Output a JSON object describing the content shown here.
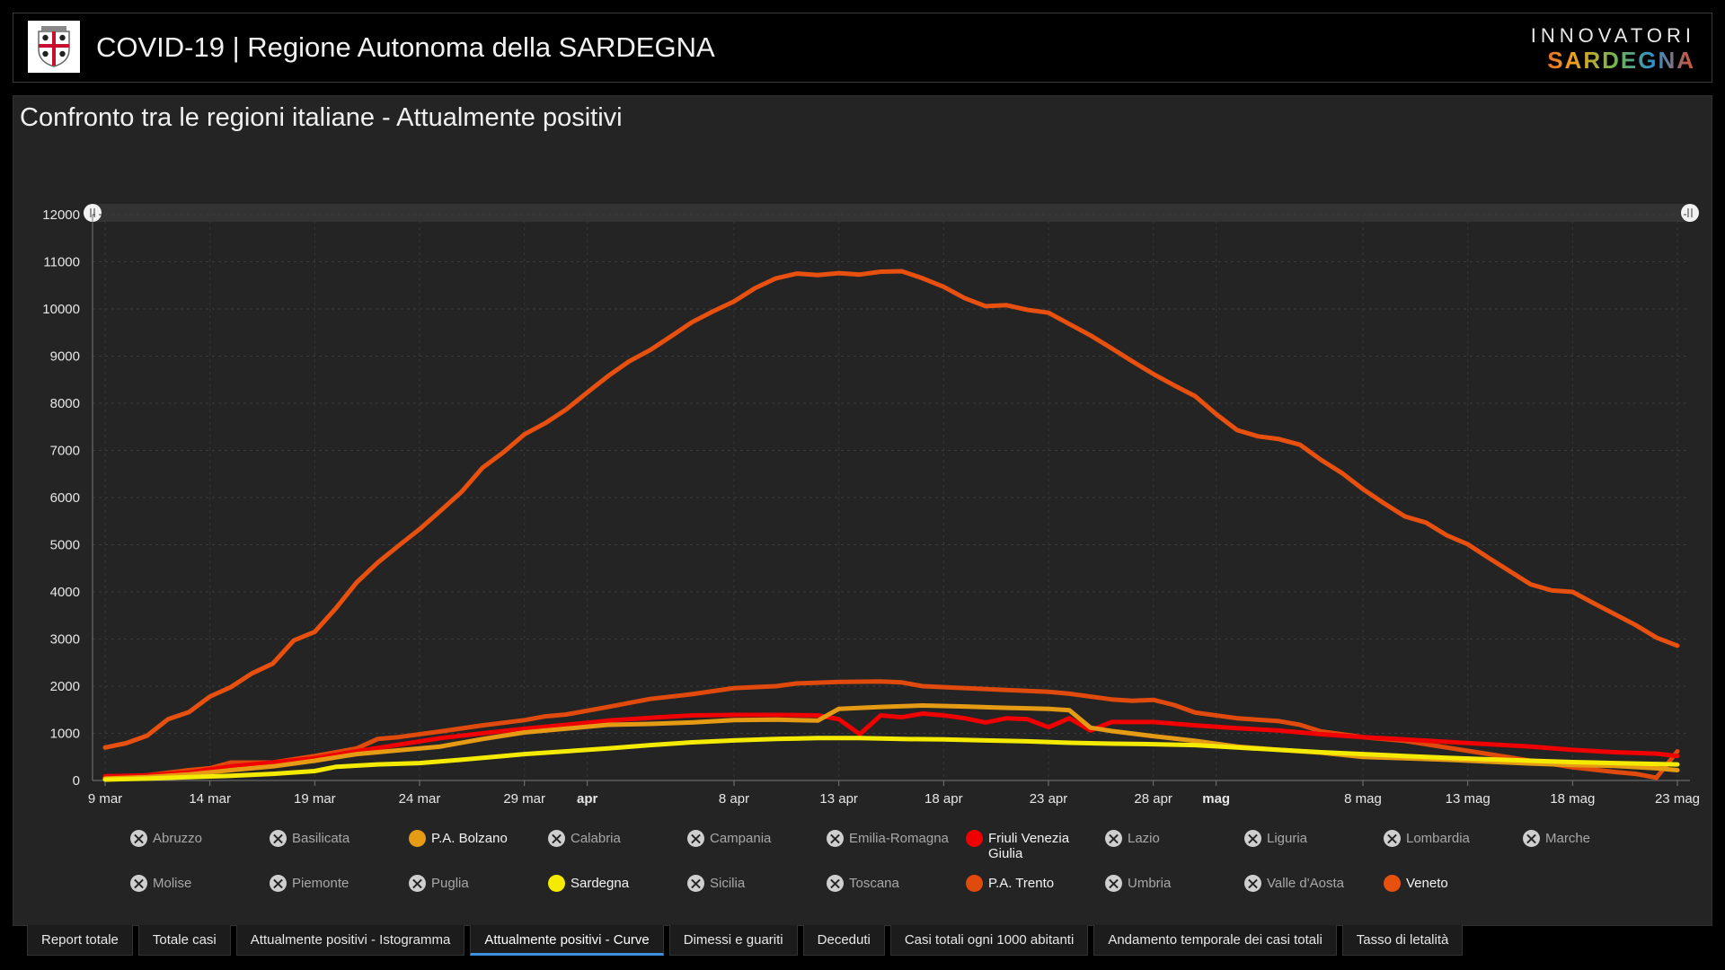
{
  "header": {
    "title": "COVID-19 | Regione Autonoma della SARDEGNA",
    "brand_top": "INNOVATORI",
    "brand_bottom": "SARDEGNA"
  },
  "panel": {
    "title": "Confronto tra le regioni italiane - Attualmente positivi"
  },
  "legend": {
    "items": [
      {
        "label": "Abruzzo",
        "active": false,
        "color": "#cfcfcf"
      },
      {
        "label": "Basilicata",
        "active": false,
        "color": "#cfcfcf"
      },
      {
        "label": "P.A. Bolzano",
        "active": true,
        "color": "#e59b14"
      },
      {
        "label": "Calabria",
        "active": false,
        "color": "#cfcfcf"
      },
      {
        "label": "Campania",
        "active": false,
        "color": "#cfcfcf"
      },
      {
        "label": "Emilia-Romagna",
        "active": false,
        "color": "#cfcfcf"
      },
      {
        "label": "Friuli Venezia Giulia",
        "active": true,
        "color": "#f00000"
      },
      {
        "label": "Lazio",
        "active": false,
        "color": "#cfcfcf"
      },
      {
        "label": "Liguria",
        "active": false,
        "color": "#cfcfcf"
      },
      {
        "label": "Lombardia",
        "active": false,
        "color": "#cfcfcf"
      },
      {
        "label": "Marche",
        "active": false,
        "color": "#cfcfcf"
      },
      {
        "label": "Molise",
        "active": false,
        "color": "#cfcfcf"
      },
      {
        "label": "Piemonte",
        "active": false,
        "color": "#cfcfcf"
      },
      {
        "label": "Puglia",
        "active": false,
        "color": "#cfcfcf"
      },
      {
        "label": "Sardegna",
        "active": true,
        "color": "#f5eb00"
      },
      {
        "label": "Sicilia",
        "active": false,
        "color": "#cfcfcf"
      },
      {
        "label": "Toscana",
        "active": false,
        "color": "#cfcfcf"
      },
      {
        "label": "P.A. Trento",
        "active": true,
        "color": "#e04a0c"
      },
      {
        "label": "Umbria",
        "active": false,
        "color": "#cfcfcf"
      },
      {
        "label": "Valle d'Aosta",
        "active": false,
        "color": "#cfcfcf"
      },
      {
        "label": "Veneto",
        "active": true,
        "color": "#e8500f"
      }
    ]
  },
  "tabs": [
    {
      "label": "Report totale",
      "active": false
    },
    {
      "label": "Totale casi",
      "active": false
    },
    {
      "label": "Attualmente positivi - Istogramma",
      "active": false
    },
    {
      "label": "Attualmente positivi - Curve",
      "active": true
    },
    {
      "label": "Dimessi e guariti",
      "active": false
    },
    {
      "label": "Deceduti",
      "active": false
    },
    {
      "label": "Casi totali ogni 1000 abitanti",
      "active": false
    },
    {
      "label": "Andamento temporale dei casi totali",
      "active": false
    },
    {
      "label": "Tasso di letalità",
      "active": false
    }
  ],
  "chart_data": {
    "type": "line",
    "title": "Confronto tra le regioni italiane - Attualmente positivi",
    "xlabel": "",
    "ylabel": "",
    "ylim": [
      0,
      12000
    ],
    "yticks": [
      0,
      1000,
      2000,
      3000,
      4000,
      5000,
      6000,
      7000,
      8000,
      9000,
      10000,
      11000,
      12000
    ],
    "xlim": [
      "9 mar",
      "23 mag"
    ],
    "xticks": [
      {
        "label": "9 mar",
        "day": 0,
        "bold": false
      },
      {
        "label": "14 mar",
        "day": 5,
        "bold": false
      },
      {
        "label": "19 mar",
        "day": 10,
        "bold": false
      },
      {
        "label": "24 mar",
        "day": 15,
        "bold": false
      },
      {
        "label": "29 mar",
        "day": 20,
        "bold": false
      },
      {
        "label": "apr",
        "day": 23,
        "bold": true
      },
      {
        "label": "8 apr",
        "day": 30,
        "bold": false
      },
      {
        "label": "13 apr",
        "day": 35,
        "bold": false
      },
      {
        "label": "18 apr",
        "day": 40,
        "bold": false
      },
      {
        "label": "23 apr",
        "day": 45,
        "bold": false
      },
      {
        "label": "28 apr",
        "day": 50,
        "bold": false
      },
      {
        "label": "mag",
        "day": 53,
        "bold": true
      },
      {
        "label": "8 mag",
        "day": 60,
        "bold": false
      },
      {
        "label": "13 mag",
        "day": 65,
        "bold": false
      },
      {
        "label": "18 mag",
        "day": 70,
        "bold": false
      },
      {
        "label": "23 mag",
        "day": 75,
        "bold": false
      }
    ],
    "grid": true,
    "legend_position": "bottom",
    "series": [
      {
        "name": "Veneto",
        "color": "#e8500f",
        "points": [
          [
            0,
            700
          ],
          [
            1,
            790
          ],
          [
            2,
            950
          ],
          [
            3,
            1300
          ],
          [
            4,
            1450
          ],
          [
            5,
            1780
          ],
          [
            6,
            1980
          ],
          [
            7,
            2270
          ],
          [
            8,
            2480
          ],
          [
            9,
            2970
          ],
          [
            10,
            3150
          ],
          [
            11,
            3650
          ],
          [
            12,
            4200
          ],
          [
            13,
            4620
          ],
          [
            14,
            4980
          ],
          [
            15,
            5330
          ],
          [
            16,
            5720
          ],
          [
            17,
            6120
          ],
          [
            18,
            6630
          ],
          [
            19,
            6960
          ],
          [
            20,
            7340
          ],
          [
            21,
            7580
          ],
          [
            22,
            7870
          ],
          [
            23,
            8230
          ],
          [
            24,
            8580
          ],
          [
            25,
            8890
          ],
          [
            26,
            9130
          ],
          [
            27,
            9420
          ],
          [
            28,
            9720
          ],
          [
            29,
            9950
          ],
          [
            30,
            10160
          ],
          [
            31,
            10440
          ],
          [
            32,
            10650
          ],
          [
            33,
            10750
          ],
          [
            34,
            10720
          ],
          [
            35,
            10760
          ],
          [
            36,
            10730
          ],
          [
            37,
            10790
          ],
          [
            38,
            10800
          ],
          [
            39,
            10650
          ],
          [
            40,
            10470
          ],
          [
            41,
            10230
          ],
          [
            42,
            10060
          ],
          [
            43,
            10080
          ],
          [
            44,
            9980
          ],
          [
            45,
            9920
          ],
          [
            46,
            9680
          ],
          [
            47,
            9440
          ],
          [
            48,
            9170
          ],
          [
            49,
            8890
          ],
          [
            50,
            8620
          ],
          [
            51,
            8380
          ],
          [
            52,
            8150
          ],
          [
            53,
            7770
          ],
          [
            54,
            7430
          ],
          [
            55,
            7300
          ],
          [
            56,
            7240
          ],
          [
            57,
            7120
          ],
          [
            58,
            6800
          ],
          [
            59,
            6520
          ],
          [
            60,
            6180
          ],
          [
            61,
            5880
          ],
          [
            62,
            5600
          ],
          [
            63,
            5470
          ],
          [
            64,
            5200
          ],
          [
            65,
            5010
          ],
          [
            66,
            4720
          ],
          [
            67,
            4440
          ],
          [
            68,
            4160
          ],
          [
            69,
            4030
          ],
          [
            70,
            4000
          ],
          [
            71,
            3760
          ],
          [
            72,
            3530
          ],
          [
            73,
            3300
          ],
          [
            74,
            3030
          ],
          [
            75,
            2860
          ]
        ]
      },
      {
        "name": "P.A. Trento",
        "color": "#e04a0c",
        "points": [
          [
            0,
            60
          ],
          [
            2,
            110
          ],
          [
            4,
            220
          ],
          [
            5,
            260
          ],
          [
            6,
            380
          ],
          [
            8,
            380
          ],
          [
            10,
            520
          ],
          [
            12,
            680
          ],
          [
            13,
            880
          ],
          [
            14,
            920
          ],
          [
            16,
            1040
          ],
          [
            18,
            1170
          ],
          [
            20,
            1280
          ],
          [
            21,
            1360
          ],
          [
            22,
            1400
          ],
          [
            24,
            1560
          ],
          [
            26,
            1730
          ],
          [
            28,
            1830
          ],
          [
            30,
            1960
          ],
          [
            32,
            2000
          ],
          [
            33,
            2060
          ],
          [
            35,
            2090
          ],
          [
            37,
            2100
          ],
          [
            38,
            2080
          ],
          [
            39,
            2000
          ],
          [
            41,
            1960
          ],
          [
            43,
            1920
          ],
          [
            45,
            1880
          ],
          [
            46,
            1840
          ],
          [
            48,
            1720
          ],
          [
            49,
            1690
          ],
          [
            50,
            1710
          ],
          [
            51,
            1600
          ],
          [
            52,
            1440
          ],
          [
            54,
            1320
          ],
          [
            56,
            1260
          ],
          [
            57,
            1180
          ],
          [
            58,
            1040
          ],
          [
            60,
            920
          ],
          [
            62,
            840
          ],
          [
            64,
            700
          ],
          [
            66,
            560
          ],
          [
            68,
            420
          ],
          [
            70,
            280
          ],
          [
            72,
            180
          ],
          [
            73,
            140
          ],
          [
            74,
            60
          ],
          [
            75,
            620
          ]
        ]
      },
      {
        "name": "Friuli Venezia Giulia",
        "color": "#f00000",
        "points": [
          [
            0,
            90
          ],
          [
            2,
            110
          ],
          [
            4,
            170
          ],
          [
            6,
            300
          ],
          [
            8,
            380
          ],
          [
            10,
            470
          ],
          [
            12,
            620
          ],
          [
            14,
            760
          ],
          [
            16,
            900
          ],
          [
            18,
            1000
          ],
          [
            20,
            1100
          ],
          [
            22,
            1180
          ],
          [
            24,
            1270
          ],
          [
            26,
            1330
          ],
          [
            28,
            1380
          ],
          [
            30,
            1390
          ],
          [
            32,
            1390
          ],
          [
            34,
            1380
          ],
          [
            35,
            1300
          ],
          [
            36,
            980
          ],
          [
            37,
            1380
          ],
          [
            38,
            1340
          ],
          [
            39,
            1420
          ],
          [
            40,
            1380
          ],
          [
            41,
            1320
          ],
          [
            42,
            1230
          ],
          [
            43,
            1320
          ],
          [
            44,
            1300
          ],
          [
            45,
            1130
          ],
          [
            46,
            1320
          ],
          [
            47,
            1060
          ],
          [
            48,
            1240
          ],
          [
            50,
            1240
          ],
          [
            52,
            1170
          ],
          [
            54,
            1110
          ],
          [
            56,
            1060
          ],
          [
            58,
            980
          ],
          [
            60,
            920
          ],
          [
            62,
            870
          ],
          [
            64,
            820
          ],
          [
            66,
            770
          ],
          [
            68,
            720
          ],
          [
            70,
            650
          ],
          [
            72,
            600
          ],
          [
            74,
            570
          ],
          [
            75,
            520
          ]
        ]
      },
      {
        "name": "P.A. Bolzano",
        "color": "#e59b14",
        "points": [
          [
            0,
            40
          ],
          [
            2,
            70
          ],
          [
            4,
            130
          ],
          [
            6,
            220
          ],
          [
            8,
            300
          ],
          [
            10,
            420
          ],
          [
            12,
            560
          ],
          [
            14,
            640
          ],
          [
            16,
            720
          ],
          [
            18,
            880
          ],
          [
            20,
            1020
          ],
          [
            22,
            1100
          ],
          [
            24,
            1180
          ],
          [
            26,
            1200
          ],
          [
            28,
            1230
          ],
          [
            30,
            1280
          ],
          [
            32,
            1290
          ],
          [
            34,
            1270
          ],
          [
            35,
            1520
          ],
          [
            37,
            1560
          ],
          [
            39,
            1590
          ],
          [
            41,
            1570
          ],
          [
            43,
            1540
          ],
          [
            45,
            1520
          ],
          [
            46,
            1490
          ],
          [
            47,
            1120
          ],
          [
            48,
            1050
          ],
          [
            50,
            940
          ],
          [
            52,
            840
          ],
          [
            54,
            720
          ],
          [
            56,
            650
          ],
          [
            58,
            590
          ],
          [
            60,
            500
          ],
          [
            62,
            470
          ],
          [
            64,
            440
          ],
          [
            66,
            400
          ],
          [
            68,
            360
          ],
          [
            70,
            330
          ],
          [
            72,
            310
          ],
          [
            74,
            260
          ],
          [
            75,
            220
          ]
        ]
      },
      {
        "name": "Sardegna",
        "color": "#f5eb00",
        "points": [
          [
            0,
            20
          ],
          [
            2,
            40
          ],
          [
            4,
            70
          ],
          [
            6,
            100
          ],
          [
            8,
            140
          ],
          [
            10,
            200
          ],
          [
            11,
            290
          ],
          [
            13,
            340
          ],
          [
            15,
            370
          ],
          [
            17,
            440
          ],
          [
            19,
            520
          ],
          [
            20,
            560
          ],
          [
            22,
            620
          ],
          [
            24,
            680
          ],
          [
            26,
            750
          ],
          [
            28,
            810
          ],
          [
            30,
            850
          ],
          [
            32,
            880
          ],
          [
            34,
            900
          ],
          [
            36,
            900
          ],
          [
            38,
            880
          ],
          [
            40,
            870
          ],
          [
            42,
            850
          ],
          [
            44,
            830
          ],
          [
            46,
            800
          ],
          [
            48,
            780
          ],
          [
            50,
            770
          ],
          [
            52,
            750
          ],
          [
            54,
            700
          ],
          [
            56,
            650
          ],
          [
            58,
            600
          ],
          [
            60,
            560
          ],
          [
            62,
            520
          ],
          [
            64,
            480
          ],
          [
            66,
            450
          ],
          [
            68,
            420
          ],
          [
            70,
            390
          ],
          [
            72,
            370
          ],
          [
            74,
            350
          ],
          [
            75,
            340
          ]
        ]
      }
    ]
  }
}
